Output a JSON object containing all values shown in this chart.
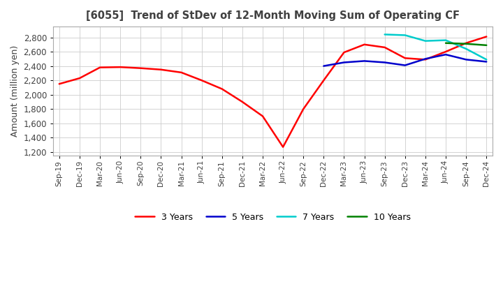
{
  "title": "[6055]  Trend of StDev of 12-Month Moving Sum of Operating CF",
  "ylabel": "Amount (million yen)",
  "background_color": "#ffffff",
  "grid_color": "#cccccc",
  "title_color": "#404040",
  "ylim": [
    1150,
    2950
  ],
  "yticks": [
    1200,
    1400,
    1600,
    1800,
    2000,
    2200,
    2400,
    2600,
    2800
  ],
  "lines": {
    "3 Years": {
      "color": "#ff0000",
      "data": {
        "Sep-19": 2150,
        "Dec-19": 2230,
        "Mar-20": 2380,
        "Jun-20": 2385,
        "Sep-20": 2370,
        "Dec-20": 2350,
        "Mar-21": 2310,
        "Jun-21": 2200,
        "Sep-21": 2080,
        "Dec-21": 1900,
        "Mar-22": 1700,
        "Jun-22": 1270,
        "Sep-22": 1800,
        "Dec-22": 2200,
        "Mar-23": 2590,
        "Jun-23": 2700,
        "Sep-23": 2660,
        "Dec-23": 2510,
        "Mar-24": 2490,
        "Jun-24": 2600,
        "Sep-24": 2720,
        "Dec-24": 2810
      }
    },
    "5 Years": {
      "color": "#0000cc",
      "data": {
        "Dec-22": 2400,
        "Mar-23": 2450,
        "Jun-23": 2470,
        "Sep-23": 2450,
        "Dec-23": 2410,
        "Mar-24": 2500,
        "Jun-24": 2560,
        "Sep-24": 2490,
        "Dec-24": 2460
      }
    },
    "7 Years": {
      "color": "#00cccc",
      "data": {
        "Sep-23": 2840,
        "Dec-23": 2830,
        "Mar-24": 2750,
        "Jun-24": 2760,
        "Sep-24": 2640,
        "Dec-24": 2490
      }
    },
    "10 Years": {
      "color": "#008000",
      "data": {
        "Jun-24": 2720,
        "Sep-24": 2710,
        "Dec-24": 2690
      }
    }
  },
  "x_labels": [
    "Sep-19",
    "Dec-19",
    "Mar-20",
    "Jun-20",
    "Sep-20",
    "Dec-20",
    "Mar-21",
    "Jun-21",
    "Sep-21",
    "Dec-21",
    "Mar-22",
    "Jun-22",
    "Sep-22",
    "Dec-22",
    "Mar-23",
    "Jun-23",
    "Sep-23",
    "Dec-23",
    "Mar-24",
    "Jun-24",
    "Sep-24",
    "Dec-24"
  ]
}
